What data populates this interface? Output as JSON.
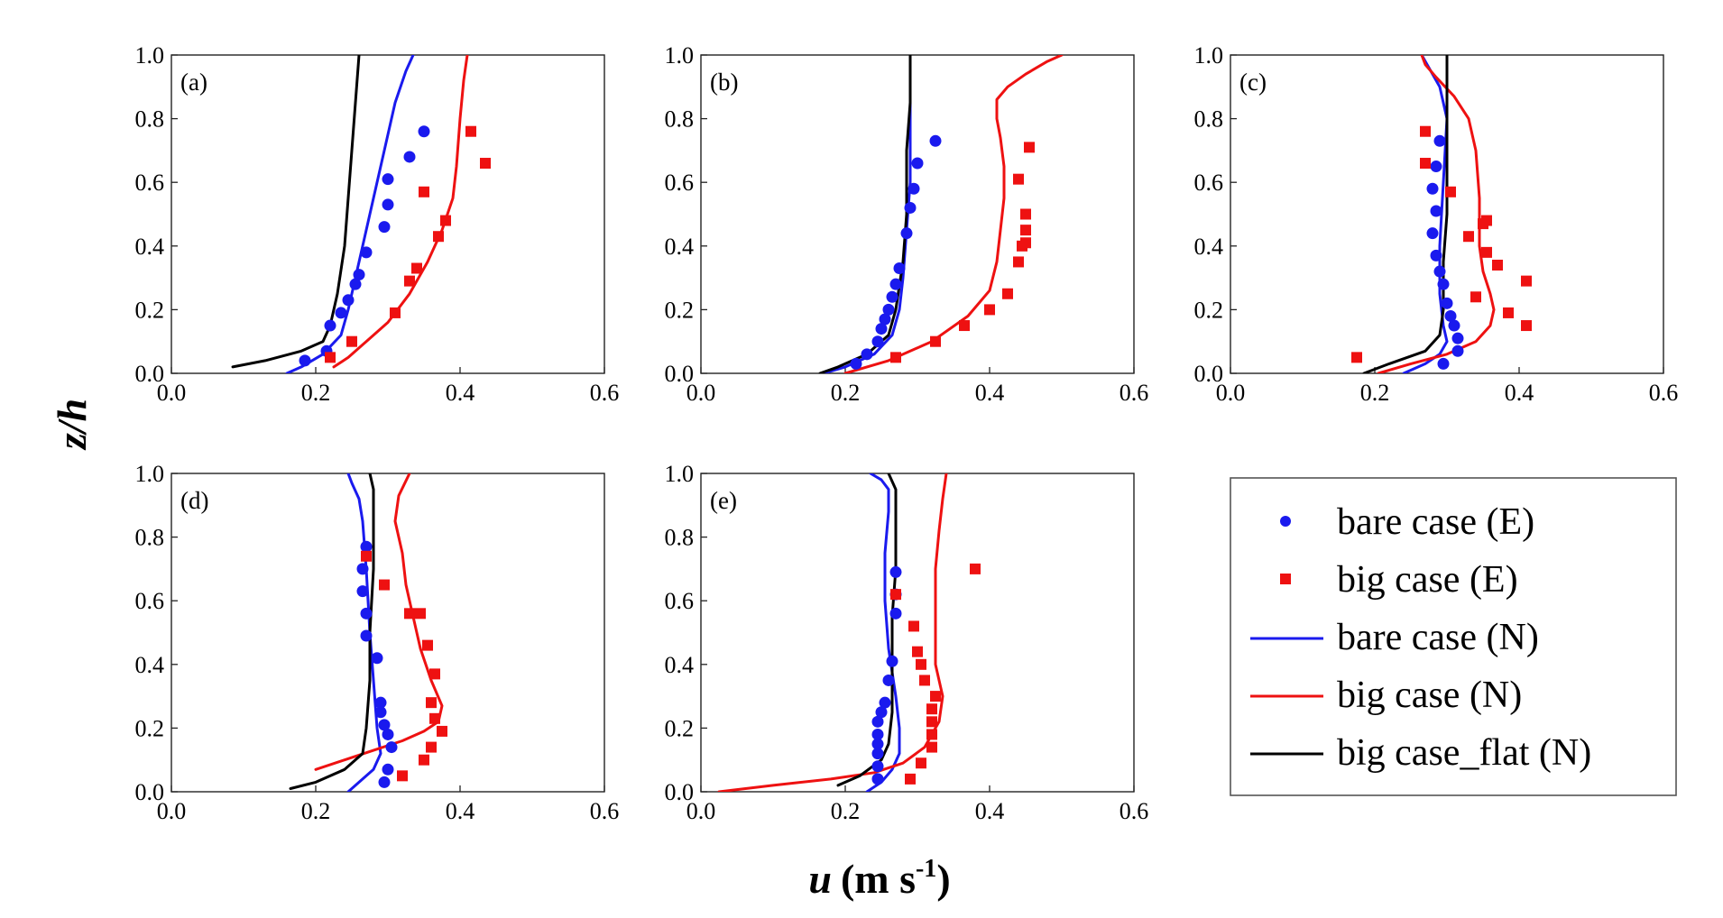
{
  "figure": {
    "ylabel": "z/h",
    "xlabel_symbol": "u",
    "xlabel_units": "(m s",
    "xlabel_exponent": "-1",
    "xlabel_close": ")"
  },
  "legend": [
    {
      "label": "bare case (E)",
      "kind": "marker",
      "marker": "circle",
      "color": "#1a1aee"
    },
    {
      "label": "big case (E)",
      "kind": "marker",
      "marker": "square",
      "color": "#ee1111"
    },
    {
      "label": "bare case (N)",
      "kind": "line",
      "color": "#1a1aee"
    },
    {
      "label": "big case (N)",
      "kind": "line",
      "color": "#ee1111"
    },
    {
      "label": "big case_flat (N)",
      "kind": "line",
      "color": "#000000"
    }
  ],
  "chart_data": [
    {
      "type": "scatter",
      "panel": "(a)",
      "xlim": [
        0.0,
        0.6
      ],
      "ylim": [
        0.0,
        1.0
      ],
      "xticks": [
        "0.0",
        "0.2",
        "0.4",
        "0.6"
      ],
      "yticks": [
        "0.0",
        "0.2",
        "0.4",
        "0.6",
        "0.8",
        "1.0"
      ],
      "series": [
        {
          "name": "bare case (E)",
          "x": [
            0.185,
            0.215,
            0.22,
            0.235,
            0.245,
            0.255,
            0.26,
            0.27,
            0.295,
            0.3,
            0.3,
            0.33,
            0.35
          ],
          "y": [
            0.04,
            0.07,
            0.15,
            0.19,
            0.23,
            0.28,
            0.31,
            0.38,
            0.46,
            0.53,
            0.61,
            0.68,
            0.76
          ]
        },
        {
          "name": "big case (E)",
          "x": [
            0.22,
            0.25,
            0.31,
            0.33,
            0.34,
            0.37,
            0.38,
            0.35,
            0.415,
            0.435
          ],
          "y": [
            0.05,
            0.1,
            0.19,
            0.29,
            0.33,
            0.43,
            0.48,
            0.57,
            0.76,
            0.66
          ]
        },
        {
          "name": "bare case (N)",
          "x": [
            0.16,
            0.18,
            0.21,
            0.235,
            0.245,
            0.255,
            0.265,
            0.28,
            0.295,
            0.31,
            0.325,
            0.335
          ],
          "y": [
            0.0,
            0.02,
            0.06,
            0.12,
            0.2,
            0.3,
            0.4,
            0.55,
            0.7,
            0.85,
            0.95,
            1.0
          ]
        },
        {
          "name": "big case (N)",
          "x": [
            0.225,
            0.245,
            0.27,
            0.3,
            0.33,
            0.355,
            0.375,
            0.39,
            0.395,
            0.4,
            0.405,
            0.41
          ],
          "y": [
            0.02,
            0.05,
            0.1,
            0.16,
            0.25,
            0.35,
            0.45,
            0.55,
            0.65,
            0.8,
            0.92,
            1.0
          ]
        },
        {
          "name": "big case_flat (N)",
          "x": [
            0.085,
            0.13,
            0.18,
            0.21,
            0.22,
            0.23,
            0.24,
            0.245,
            0.25,
            0.255,
            0.26
          ],
          "y": [
            0.02,
            0.04,
            0.07,
            0.1,
            0.15,
            0.25,
            0.4,
            0.55,
            0.7,
            0.85,
            1.0
          ]
        }
      ]
    },
    {
      "type": "scatter",
      "panel": "(b)",
      "xlim": [
        0.0,
        0.6
      ],
      "ylim": [
        0.0,
        1.0
      ],
      "xticks": [
        "0.0",
        "0.2",
        "0.4",
        "0.6"
      ],
      "yticks": [
        "0.0",
        "0.2",
        "0.4",
        "0.6",
        "0.8",
        "1.0"
      ],
      "series": [
        {
          "name": "bare case (E)",
          "x": [
            0.215,
            0.23,
            0.245,
            0.25,
            0.255,
            0.26,
            0.265,
            0.27,
            0.275,
            0.285,
            0.29,
            0.295,
            0.3,
            0.325
          ],
          "y": [
            0.03,
            0.06,
            0.1,
            0.14,
            0.17,
            0.2,
            0.24,
            0.28,
            0.33,
            0.44,
            0.52,
            0.58,
            0.66,
            0.73
          ]
        },
        {
          "name": "big case (E)",
          "x": [
            0.27,
            0.325,
            0.365,
            0.4,
            0.425,
            0.44,
            0.445,
            0.45,
            0.45,
            0.45,
            0.455,
            0.44
          ],
          "y": [
            0.05,
            0.1,
            0.15,
            0.2,
            0.25,
            0.35,
            0.4,
            0.45,
            0.5,
            0.41,
            0.71,
            0.61
          ]
        },
        {
          "name": "bare case (N)",
          "x": [
            0.17,
            0.2,
            0.24,
            0.265,
            0.275,
            0.28,
            0.285,
            0.29,
            0.29,
            0.29
          ],
          "y": [
            0.0,
            0.02,
            0.06,
            0.12,
            0.2,
            0.3,
            0.45,
            0.6,
            0.8,
            1.0
          ]
        },
        {
          "name": "big case (N)",
          "x": [
            0.2,
            0.26,
            0.32,
            0.37,
            0.4,
            0.41,
            0.415,
            0.42,
            0.42,
            0.415,
            0.41,
            0.41,
            0.425,
            0.45,
            0.48,
            0.5
          ],
          "y": [
            0.0,
            0.04,
            0.1,
            0.18,
            0.26,
            0.35,
            0.45,
            0.55,
            0.65,
            0.74,
            0.8,
            0.86,
            0.9,
            0.94,
            0.98,
            1.0
          ]
        },
        {
          "name": "big case_flat (N)",
          "x": [
            0.165,
            0.19,
            0.23,
            0.26,
            0.27,
            0.28,
            0.285,
            0.285,
            0.29,
            0.29
          ],
          "y": [
            0.0,
            0.02,
            0.06,
            0.12,
            0.2,
            0.35,
            0.5,
            0.7,
            0.85,
            1.0
          ]
        }
      ]
    },
    {
      "type": "scatter",
      "panel": "(c)",
      "xlim": [
        0.0,
        0.6
      ],
      "ylim": [
        0.0,
        1.0
      ],
      "xticks": [
        "0.0",
        "0.2",
        "0.4",
        "0.6"
      ],
      "yticks": [
        "0.0",
        "0.2",
        "0.4",
        "0.6",
        "0.8",
        "1.0"
      ],
      "series": [
        {
          "name": "bare case (E)",
          "x": [
            0.295,
            0.315,
            0.315,
            0.31,
            0.305,
            0.3,
            0.295,
            0.29,
            0.285,
            0.28,
            0.285,
            0.28,
            0.285,
            0.29
          ],
          "y": [
            0.03,
            0.07,
            0.11,
            0.15,
            0.18,
            0.22,
            0.28,
            0.32,
            0.37,
            0.44,
            0.51,
            0.58,
            0.65,
            0.73
          ]
        },
        {
          "name": "big case (E)",
          "x": [
            0.175,
            0.385,
            0.41,
            0.34,
            0.41,
            0.37,
            0.355,
            0.33,
            0.355,
            0.35,
            0.305,
            0.27,
            0.27
          ],
          "y": [
            0.05,
            0.19,
            0.15,
            0.24,
            0.29,
            0.34,
            0.38,
            0.43,
            0.48,
            0.47,
            0.57,
            0.66,
            0.76
          ]
        },
        {
          "name": "bare case (N)",
          "x": [
            0.24,
            0.27,
            0.29,
            0.3,
            0.295,
            0.29,
            0.29,
            0.295,
            0.3,
            0.29,
            0.275,
            0.265
          ],
          "y": [
            0.0,
            0.03,
            0.06,
            0.1,
            0.15,
            0.25,
            0.4,
            0.6,
            0.8,
            0.9,
            0.96,
            1.0
          ]
        },
        {
          "name": "big case (N)",
          "x": [
            0.205,
            0.25,
            0.3,
            0.34,
            0.36,
            0.365,
            0.36,
            0.35,
            0.345,
            0.345,
            0.34,
            0.33,
            0.31,
            0.285,
            0.27,
            0.265
          ],
          "y": [
            0.0,
            0.03,
            0.06,
            0.1,
            0.15,
            0.2,
            0.25,
            0.32,
            0.4,
            0.55,
            0.7,
            0.8,
            0.87,
            0.93,
            0.97,
            1.0
          ]
        },
        {
          "name": "big case_flat (N)",
          "x": [
            0.185,
            0.22,
            0.27,
            0.29,
            0.295,
            0.295,
            0.3,
            0.3,
            0.3,
            0.3
          ],
          "y": [
            0.0,
            0.03,
            0.07,
            0.12,
            0.2,
            0.35,
            0.5,
            0.7,
            0.85,
            1.0
          ]
        }
      ]
    },
    {
      "type": "scatter",
      "panel": "(d)",
      "xlim": [
        0.0,
        0.6
      ],
      "ylim": [
        0.0,
        1.0
      ],
      "xticks": [
        "0.0",
        "0.2",
        "0.4",
        "0.6"
      ],
      "yticks": [
        "0.0",
        "0.2",
        "0.4",
        "0.6",
        "0.8",
        "1.0"
      ],
      "series": [
        {
          "name": "bare case (E)",
          "x": [
            0.295,
            0.3,
            0.305,
            0.3,
            0.295,
            0.29,
            0.29,
            0.285,
            0.27,
            0.27,
            0.265,
            0.265,
            0.27
          ],
          "y": [
            0.03,
            0.07,
            0.14,
            0.18,
            0.21,
            0.25,
            0.28,
            0.42,
            0.49,
            0.56,
            0.63,
            0.7,
            0.77
          ]
        },
        {
          "name": "big case (E)",
          "x": [
            0.32,
            0.35,
            0.36,
            0.375,
            0.365,
            0.36,
            0.365,
            0.355,
            0.345,
            0.33,
            0.295,
            0.27
          ],
          "y": [
            0.05,
            0.1,
            0.14,
            0.19,
            0.23,
            0.28,
            0.37,
            0.46,
            0.56,
            0.56,
            0.65,
            0.74
          ]
        },
        {
          "name": "bare case (N)",
          "x": [
            0.245,
            0.26,
            0.28,
            0.29,
            0.285,
            0.28,
            0.275,
            0.27,
            0.265,
            0.26,
            0.25,
            0.245
          ],
          "y": [
            0.0,
            0.03,
            0.07,
            0.12,
            0.2,
            0.35,
            0.5,
            0.7,
            0.85,
            0.92,
            0.97,
            1.0
          ]
        },
        {
          "name": "big case (N)",
          "x": [
            0.2,
            0.24,
            0.28,
            0.32,
            0.35,
            0.37,
            0.375,
            0.36,
            0.345,
            0.335,
            0.325,
            0.32,
            0.31,
            0.315,
            0.33
          ],
          "y": [
            0.07,
            0.1,
            0.13,
            0.16,
            0.19,
            0.22,
            0.27,
            0.35,
            0.45,
            0.55,
            0.65,
            0.75,
            0.85,
            0.93,
            1.0
          ]
        },
        {
          "name": "big case_flat (N)",
          "x": [
            0.165,
            0.2,
            0.24,
            0.265,
            0.27,
            0.275,
            0.275,
            0.28,
            0.28,
            0.28,
            0.275
          ],
          "y": [
            0.01,
            0.03,
            0.07,
            0.12,
            0.2,
            0.35,
            0.5,
            0.7,
            0.85,
            0.95,
            1.0
          ]
        }
      ]
    },
    {
      "type": "scatter",
      "panel": "(e)",
      "xlim": [
        0.0,
        0.6
      ],
      "ylim": [
        0.0,
        1.0
      ],
      "xticks": [
        "0.0",
        "0.2",
        "0.4",
        "0.6"
      ],
      "yticks": [
        "0.0",
        "0.2",
        "0.4",
        "0.6",
        "0.8",
        "1.0"
      ],
      "series": [
        {
          "name": "bare case (E)",
          "x": [
            0.245,
            0.245,
            0.245,
            0.245,
            0.245,
            0.245,
            0.25,
            0.255,
            0.26,
            0.265,
            0.27,
            0.27,
            0.27
          ],
          "y": [
            0.04,
            0.08,
            0.12,
            0.15,
            0.18,
            0.22,
            0.25,
            0.28,
            0.35,
            0.41,
            0.56,
            0.62,
            0.69
          ]
        },
        {
          "name": "big case (E)",
          "x": [
            0.29,
            0.305,
            0.32,
            0.32,
            0.32,
            0.32,
            0.325,
            0.31,
            0.305,
            0.3,
            0.295,
            0.27,
            0.38
          ],
          "y": [
            0.04,
            0.09,
            0.14,
            0.18,
            0.22,
            0.26,
            0.3,
            0.35,
            0.4,
            0.44,
            0.52,
            0.62,
            0.7
          ]
        },
        {
          "name": "bare case (N)",
          "x": [
            0.23,
            0.25,
            0.265,
            0.275,
            0.275,
            0.27,
            0.26,
            0.255,
            0.255,
            0.26,
            0.26,
            0.25,
            0.235
          ],
          "y": [
            0.0,
            0.03,
            0.07,
            0.12,
            0.2,
            0.3,
            0.45,
            0.6,
            0.75,
            0.88,
            0.95,
            0.98,
            1.0
          ]
        },
        {
          "name": "big case (N)",
          "x": [
            0.025,
            0.1,
            0.18,
            0.24,
            0.28,
            0.31,
            0.33,
            0.335,
            0.325,
            0.325,
            0.325,
            0.33,
            0.335,
            0.34
          ],
          "y": [
            0.0,
            0.02,
            0.04,
            0.06,
            0.09,
            0.14,
            0.22,
            0.3,
            0.4,
            0.55,
            0.7,
            0.82,
            0.92,
            1.0
          ]
        },
        {
          "name": "big case_flat (N)",
          "x": [
            0.19,
            0.22,
            0.25,
            0.26,
            0.265,
            0.265,
            0.265,
            0.27,
            0.27,
            0.27,
            0.26
          ],
          "y": [
            0.02,
            0.05,
            0.1,
            0.15,
            0.25,
            0.4,
            0.55,
            0.7,
            0.85,
            0.95,
            1.0
          ]
        }
      ]
    }
  ]
}
